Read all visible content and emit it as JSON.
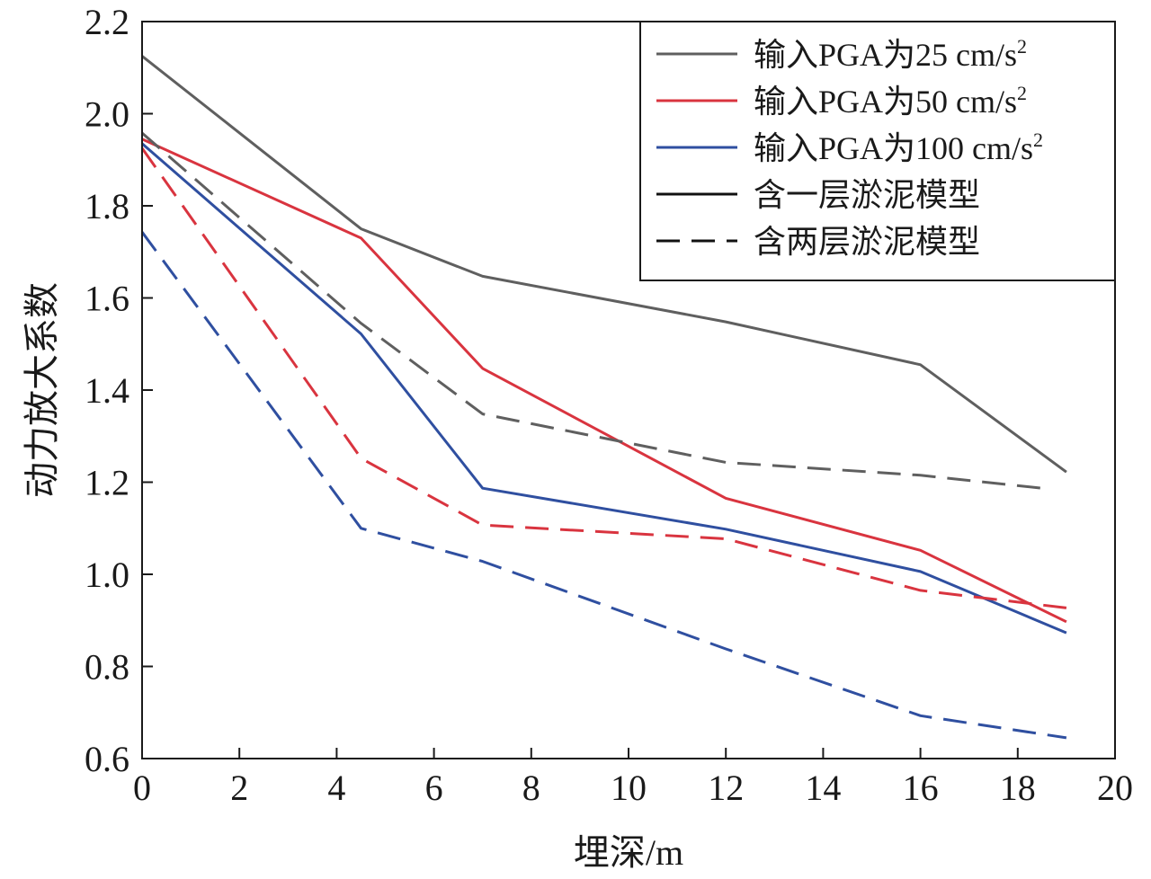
{
  "chart_data": {
    "type": "line",
    "xlabel": "埋深/m",
    "ylabel": "动力放大系数",
    "xlim": [
      0,
      20
    ],
    "ylim": [
      0.6,
      2.2
    ],
    "xticks": [
      "0",
      "2",
      "4",
      "6",
      "8",
      "10",
      "12",
      "14",
      "16",
      "18",
      "20"
    ],
    "yticks": [
      "0.6",
      "0.8",
      "1.0",
      "1.2",
      "1.4",
      "1.6",
      "1.8",
      "2.0",
      "2.2"
    ],
    "grid": false,
    "legend_position": "top-right",
    "legend": [
      {
        "text": "输入PGA为25 cm/s",
        "sup": "2",
        "color": "#5f5f5f",
        "dash": "solid"
      },
      {
        "text": "输入PGA为50 cm/s",
        "sup": "2",
        "color": "#d9343f",
        "dash": "solid"
      },
      {
        "text": "输入PGA为100 cm/s",
        "sup": "2",
        "color": "#2f4fa0",
        "dash": "solid"
      },
      {
        "text": "含一层淤泥模型",
        "sup": "",
        "color": "#111111",
        "dash": "solid"
      },
      {
        "text": "含两层淤泥模型",
        "sup": "",
        "color": "#111111",
        "dash": "dashed"
      }
    ],
    "series": [
      {
        "color": "#5f5f5f",
        "dash": "solid",
        "x": [
          0,
          4.5,
          7,
          12,
          16,
          19
        ],
        "y": [
          2.125,
          1.75,
          1.647,
          1.548,
          1.455,
          1.222
        ]
      },
      {
        "color": "#d9343f",
        "dash": "solid",
        "x": [
          0,
          4.5,
          7,
          12,
          16,
          19
        ],
        "y": [
          1.945,
          1.73,
          1.447,
          1.165,
          1.052,
          0.897
        ]
      },
      {
        "color": "#2f4fa0",
        "dash": "solid",
        "x": [
          0,
          4.5,
          7,
          12,
          16,
          19
        ],
        "y": [
          1.935,
          1.522,
          1.187,
          1.098,
          1.006,
          0.873
        ]
      },
      {
        "color": "#5f5f5f",
        "dash": "dashed",
        "x": [
          0,
          4.5,
          7,
          12,
          16,
          18.5
        ],
        "y": [
          1.958,
          1.545,
          1.348,
          1.243,
          1.215,
          1.187
        ]
      },
      {
        "color": "#d9343f",
        "dash": "dashed",
        "x": [
          0,
          4.5,
          7,
          12,
          16,
          19
        ],
        "y": [
          1.925,
          1.252,
          1.107,
          1.077,
          0.965,
          0.927
        ]
      },
      {
        "color": "#2f4fa0",
        "dash": "dashed",
        "x": [
          0,
          4.5,
          7,
          12,
          16,
          19
        ],
        "y": [
          1.743,
          1.1,
          1.028,
          0.838,
          0.693,
          0.645
        ]
      }
    ]
  }
}
